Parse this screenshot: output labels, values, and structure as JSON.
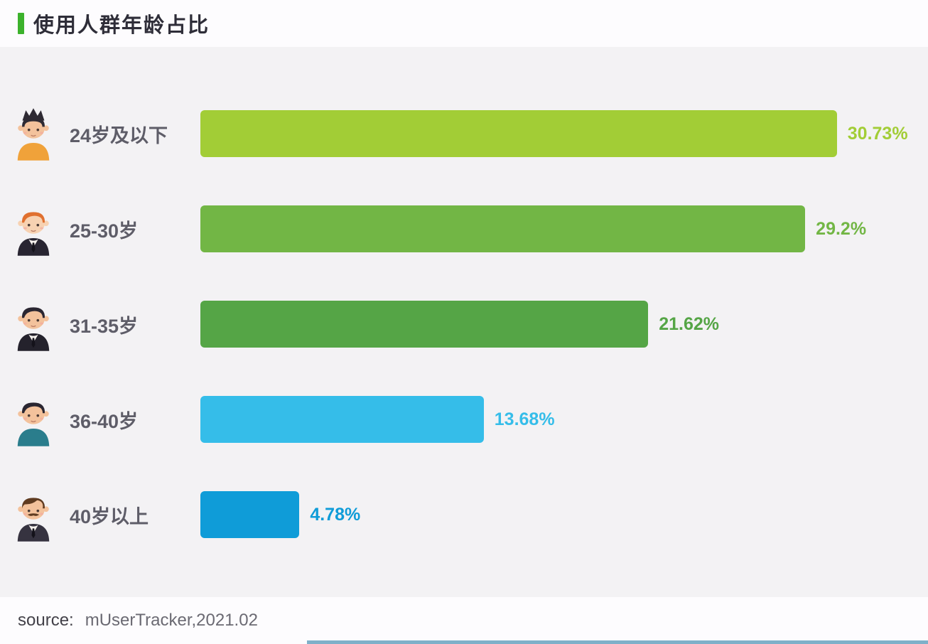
{
  "page": {
    "title": "使用人群年龄占比",
    "source_label": "source:",
    "source_value": "mUserTracker,2021.02",
    "accent_color": "#3cb22c",
    "panel_background": "#f3f2f4"
  },
  "chart_data": {
    "type": "bar",
    "orientation": "horizontal",
    "title": "使用人群年龄占比",
    "categories": [
      "24岁及以下",
      "25-30岁",
      "31-35岁",
      "36-40岁",
      "40岁以上"
    ],
    "values": [
      30.73,
      29.2,
      21.62,
      13.68,
      4.78
    ],
    "value_labels": [
      "30.73%",
      "29.2%",
      "21.62%",
      "13.68%",
      "4.78%"
    ],
    "bar_colors": [
      "#a2cd36",
      "#72b645",
      "#55a546",
      "#35bde9",
      "#0f9cd8"
    ],
    "xlim": [
      0,
      35
    ],
    "grid": false,
    "legend": false,
    "source": "mUserTracker,2021.02",
    "rows": [
      {
        "id": "under-24",
        "label": "24岁及以下",
        "value": 30.73,
        "display": "30.73%",
        "color": "#a2cd36",
        "icon": "avatar-young-man-orange-shirt-icon",
        "avatar": {
          "hairStyle": "spiky",
          "hair": "#2e2a33",
          "skin": "#f3c29c",
          "outfit": "shirt",
          "shirt": "#f0a23a",
          "mustache": false
        }
      },
      {
        "id": "25-30",
        "label": "25-30岁",
        "value": 29.2,
        "display": "29.2%",
        "color": "#72b645",
        "icon": "avatar-orange-hair-suit-icon",
        "avatar": {
          "hairStyle": "round",
          "hair": "#e0702f",
          "skin": "#f7d2b2",
          "outfit": "suit",
          "suit": "#282531",
          "mustache": false
        }
      },
      {
        "id": "31-35",
        "label": "31-35岁",
        "value": 21.62,
        "display": "21.62%",
        "color": "#55a546",
        "icon": "avatar-black-hair-suit-icon",
        "avatar": {
          "hairStyle": "round",
          "hair": "#2a2631",
          "skin": "#f3c29c",
          "outfit": "suit",
          "suit": "#24222c",
          "mustache": false
        }
      },
      {
        "id": "36-40",
        "label": "36-40岁",
        "value": 13.68,
        "display": "13.68%",
        "color": "#35bde9",
        "icon": "avatar-teal-shirt-icon",
        "avatar": {
          "hairStyle": "round",
          "hair": "#2a2631",
          "skin": "#f3c29c",
          "outfit": "shirt",
          "shirt": "#2a7d8c",
          "mustache": false
        }
      },
      {
        "id": "over-40",
        "label": "40岁以上",
        "value": 4.78,
        "display": "4.78%",
        "color": "#0f9cd8",
        "icon": "avatar-mustache-suit-icon",
        "avatar": {
          "hairStyle": "side",
          "hair": "#5f3b20",
          "skin": "#f3c29c",
          "outfit": "suit",
          "suit": "#363340",
          "mustache": true
        }
      }
    ]
  }
}
